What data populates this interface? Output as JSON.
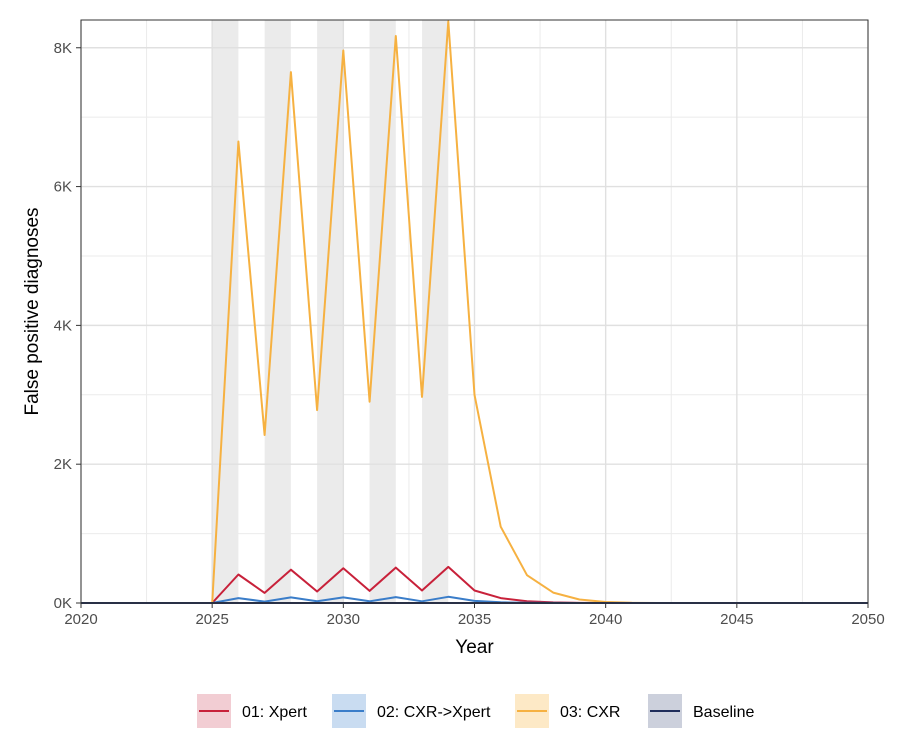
{
  "chart_data": {
    "type": "line",
    "xlabel": "Year",
    "ylabel": "False positive diagnoses",
    "xlim": [
      2020,
      2050
    ],
    "ylim": [
      0,
      8400
    ],
    "x_ticks": [
      2020,
      2025,
      2030,
      2035,
      2040,
      2045,
      2050
    ],
    "y_ticks": [
      0,
      2000,
      4000,
      6000,
      8000
    ],
    "y_tick_labels": [
      "0K",
      "2K",
      "4K",
      "6K",
      "8K"
    ],
    "grid": true,
    "legend_position": "bottom",
    "shaded_intervals": [
      [
        2025,
        2026
      ],
      [
        2027,
        2028
      ],
      [
        2029,
        2030
      ],
      [
        2031,
        2032
      ],
      [
        2033,
        2034
      ]
    ],
    "x": [
      2020,
      2021,
      2022,
      2023,
      2024,
      2025,
      2026,
      2027,
      2028,
      2029,
      2030,
      2031,
      2032,
      2033,
      2034,
      2035,
      2036,
      2037,
      2038,
      2039,
      2040,
      2041,
      2042,
      2043,
      2044,
      2045,
      2046,
      2047,
      2048,
      2049,
      2050
    ],
    "series": [
      {
        "name": "01: Xpert",
        "color": "#c8213a",
        "fill": "#f2cdd3",
        "values": [
          0,
          0,
          0,
          0,
          0,
          0,
          410,
          145,
          480,
          165,
          500,
          175,
          510,
          180,
          520,
          180,
          70,
          25,
          8,
          2,
          0,
          0,
          0,
          0,
          0,
          0,
          0,
          0,
          0,
          0,
          0
        ]
      },
      {
        "name": "02: CXR->Xpert",
        "color": "#3a7dc9",
        "fill": "#c9dcf1",
        "values": [
          0,
          0,
          0,
          0,
          0,
          0,
          70,
          20,
          80,
          25,
          80,
          25,
          85,
          25,
          90,
          30,
          10,
          3,
          1,
          0,
          0,
          0,
          0,
          0,
          0,
          0,
          0,
          0,
          0,
          0,
          0
        ]
      },
      {
        "name": "03: CXR",
        "color": "#f6b141",
        "fill": "#fde9c6",
        "values": [
          0,
          0,
          0,
          0,
          0,
          0,
          6650,
          2420,
          7650,
          2780,
          7960,
          2900,
          8170,
          2970,
          8380,
          3000,
          1100,
          400,
          150,
          50,
          15,
          3,
          0,
          0,
          0,
          0,
          0,
          0,
          0,
          0,
          0
        ]
      },
      {
        "name": "Baseline",
        "color": "#1f2d5a",
        "fill": "#ccd0dc",
        "values": [
          0,
          0,
          0,
          0,
          0,
          0,
          0,
          0,
          0,
          0,
          0,
          0,
          0,
          0,
          0,
          0,
          0,
          0,
          0,
          0,
          0,
          0,
          0,
          0,
          0,
          0,
          0,
          0,
          0,
          0,
          0
        ]
      }
    ]
  }
}
